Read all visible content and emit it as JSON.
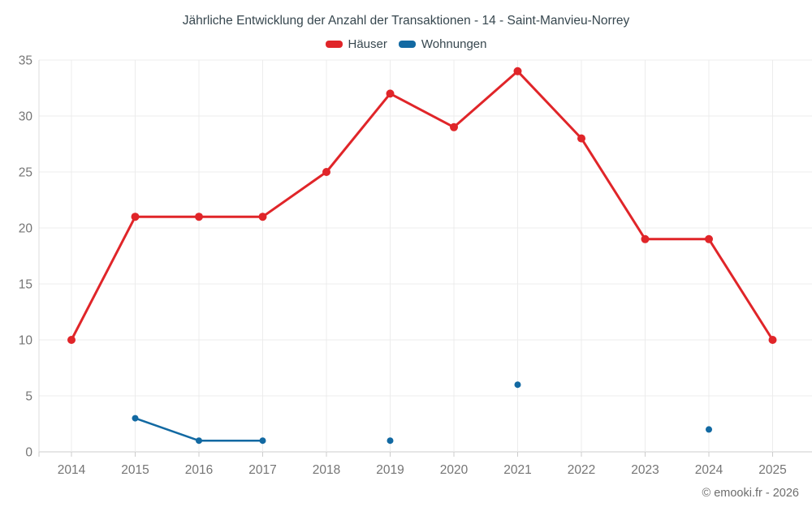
{
  "chart_data": {
    "type": "line",
    "title": "Jährliche Entwicklung der Anzahl der Transaktionen - 14 - Saint-Manvieu-Norrey",
    "categories": [
      "2014",
      "2015",
      "2016",
      "2017",
      "2018",
      "2019",
      "2020",
      "2021",
      "2022",
      "2023",
      "2024",
      "2025"
    ],
    "series": [
      {
        "name": "Häuser",
        "color": "#e02529",
        "line_width": 3,
        "marker_radius": 5,
        "values": [
          10,
          21,
          21,
          21,
          25,
          32,
          29,
          34,
          28,
          19,
          19,
          10
        ]
      },
      {
        "name": "Wohnungen",
        "color": "#1269a2",
        "line_width": 2.5,
        "marker_radius": 4,
        "values": [
          null,
          3,
          1,
          1,
          null,
          1,
          null,
          6,
          null,
          null,
          2,
          null
        ]
      }
    ],
    "xlabel": "",
    "ylabel": "",
    "ylim": [
      0,
      35
    ],
    "ytick_step": 5,
    "yticks": [
      "0",
      "5",
      "10",
      "15",
      "20",
      "25",
      "30",
      "35"
    ],
    "grid": true,
    "legend_position": "top",
    "colors": {
      "grid": "#ececec",
      "axis_line": "#cccccc",
      "left_line": "#dcdcdc",
      "tick_label": "#757575",
      "title_text": "#37474f"
    },
    "attribution": "© emooki.fr - 2026"
  }
}
